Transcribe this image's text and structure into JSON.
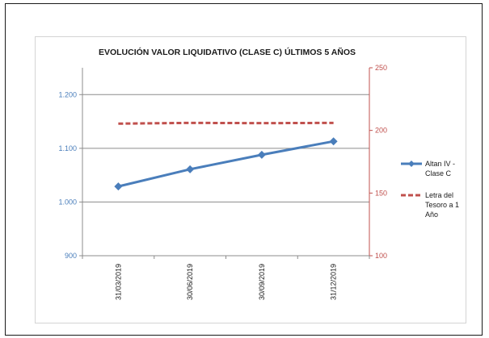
{
  "chart_data": {
    "type": "line",
    "title": "EVOLUCIÓN VALOR LIQUIDATIVO (CLASE C) ÚLTIMOS 5 AÑOS",
    "categories": [
      "31/03/2019",
      "30/06/2019",
      "30/09/2019",
      "31/12/2019"
    ],
    "y_left": {
      "range": [
        900,
        1250
      ],
      "ticks": [
        900,
        1000,
        1100,
        1200
      ],
      "tick_labels": [
        "900",
        "1.000",
        "1.100",
        "1.200"
      ],
      "color": "#4a7ebb"
    },
    "y_right": {
      "range": [
        100,
        250
      ],
      "ticks": [
        100,
        150,
        200,
        250
      ],
      "tick_labels": [
        "100",
        "150",
        "200",
        "250"
      ],
      "color": "#c0504d"
    },
    "series": [
      {
        "name": "Altan IV - Clase C",
        "legend_lines": [
          "Altan IV -",
          "Clase C"
        ],
        "axis": "left",
        "style": "solid-diamond",
        "color": "#4a7ebb",
        "values": [
          1029,
          1061,
          1088,
          1113
        ]
      },
      {
        "name": "Letra del Tesoro a 1 Año",
        "legend_lines": [
          "Letra del",
          "Tesoro a 1",
          "Año"
        ],
        "axis": "right",
        "style": "dashed",
        "color": "#c0504d",
        "values": [
          205.4,
          206.0,
          205.8,
          206.0
        ]
      }
    ],
    "gridlines": "horizontal",
    "legend_position": "right"
  }
}
